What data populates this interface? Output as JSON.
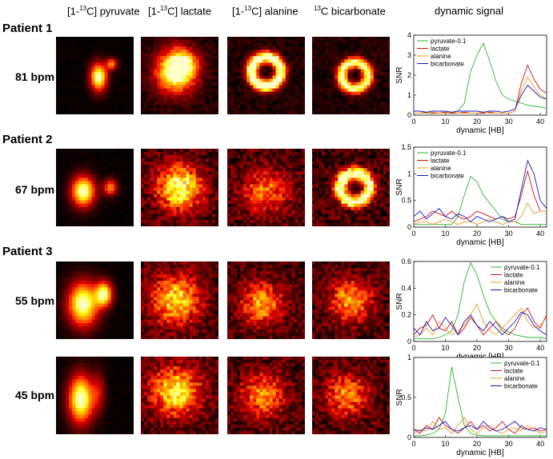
{
  "columns": [
    {
      "prefix": "[1-",
      "sup": "13",
      "suffix": "C] pyruvate"
    },
    {
      "prefix": "[1-",
      "sup": "13",
      "suffix": "C] lactate"
    },
    {
      "prefix": "[1-",
      "sup": "13",
      "suffix": "C] alanine"
    },
    {
      "prefix": "",
      "sup": "13",
      "suffix": "C bicarbonate"
    },
    {
      "prefix": "",
      "sup": "",
      "suffix": "dynamic signal"
    }
  ],
  "rows": [
    {
      "patient": "Patient 1",
      "rate": "81 bpm"
    },
    {
      "patient": "Patient 2",
      "rate": "67 bpm"
    },
    {
      "patient": "Patient 3",
      "rate": "55 bpm"
    },
    {
      "patient": "",
      "rate": "45 bpm"
    }
  ],
  "colors": {
    "pyruvate": "#2bb52b",
    "lactate": "#d01010",
    "alanine": "#f09a20",
    "bicarbonate": "#1414c8"
  },
  "chart_data": [
    {
      "type": "line",
      "xlabel": "dynamic [HB]",
      "ylabel": "SNR",
      "xlim": [
        0,
        42
      ],
      "ylim": [
        0,
        4
      ],
      "xticks": [
        0,
        10,
        20,
        30,
        40
      ],
      "yticks": [
        0,
        1,
        2,
        3,
        4
      ],
      "legend": "top-left",
      "x": [
        0,
        2,
        4,
        6,
        8,
        10,
        12,
        14,
        16,
        18,
        20,
        22,
        24,
        26,
        28,
        30,
        32,
        34,
        36,
        38,
        40,
        42
      ],
      "series": [
        {
          "name": "pyruvate-0.1",
          "key": "pyruvate",
          "values": [
            0.1,
            0.1,
            0.1,
            0.1,
            0.1,
            0.1,
            0.1,
            0.2,
            0.6,
            2.2,
            3.0,
            3.6,
            2.7,
            1.7,
            1.0,
            0.8,
            0.7,
            0.6,
            0.5,
            0.45,
            0.4,
            0.35
          ]
        },
        {
          "name": "lactate",
          "key": "lactate",
          "values": [
            0.1,
            0.1,
            0.15,
            0.1,
            0.1,
            0.15,
            0.1,
            0.1,
            0.15,
            0.1,
            0.1,
            0.1,
            0.15,
            0.1,
            0.1,
            0.1,
            0.2,
            1.6,
            2.5,
            1.8,
            1.3,
            1.1
          ]
        },
        {
          "name": "alanine",
          "key": "alanine",
          "values": [
            0.1,
            0.1,
            0.1,
            0.15,
            0.1,
            0.1,
            0.15,
            0.1,
            0.1,
            0.1,
            0.1,
            0.15,
            0.1,
            0.1,
            0.1,
            0.1,
            0.2,
            1.2,
            1.9,
            1.4,
            1.0,
            0.8
          ]
        },
        {
          "name": "bicarbonate",
          "key": "bicarbonate",
          "values": [
            0.2,
            0.2,
            0.15,
            0.2,
            0.2,
            0.2,
            0.15,
            0.2,
            0.2,
            0.2,
            0.2,
            0.15,
            0.2,
            0.2,
            0.15,
            0.2,
            0.3,
            1.0,
            1.5,
            1.2,
            0.9,
            0.8
          ]
        }
      ]
    },
    {
      "type": "line",
      "xlabel": "dynamic [HB]",
      "ylabel": "SNR",
      "xlim": [
        0,
        42
      ],
      "ylim": [
        0,
        1.5
      ],
      "xticks": [
        0,
        10,
        20,
        30,
        40
      ],
      "yticks": [
        0,
        0.5,
        1,
        1.5
      ],
      "legend": "top-left",
      "x": [
        0,
        2,
        4,
        6,
        8,
        10,
        12,
        14,
        16,
        18,
        20,
        22,
        24,
        26,
        28,
        30,
        32,
        34,
        36,
        38,
        40,
        42
      ],
      "series": [
        {
          "name": "pyruvate-0.1",
          "key": "pyruvate",
          "values": [
            0.05,
            0.05,
            0.05,
            0.05,
            0.05,
            0.05,
            0.05,
            0.2,
            0.6,
            0.95,
            0.85,
            0.6,
            0.45,
            0.3,
            0.15,
            0.1,
            0.1,
            0.05,
            0.05,
            0.05,
            0.05,
            0.05
          ]
        },
        {
          "name": "lactate",
          "key": "lactate",
          "values": [
            0.1,
            0.15,
            0.2,
            0.3,
            0.25,
            0.2,
            0.3,
            0.2,
            0.15,
            0.2,
            0.3,
            0.25,
            0.2,
            0.15,
            0.2,
            0.15,
            0.2,
            0.6,
            1.05,
            0.6,
            0.3,
            0.3
          ]
        },
        {
          "name": "alanine",
          "key": "alanine",
          "values": [
            0.05,
            0.1,
            0.1,
            0.05,
            0.1,
            0.15,
            0.1,
            0.05,
            0.1,
            0.1,
            0.05,
            0.1,
            0.15,
            0.1,
            0.05,
            0.1,
            0.1,
            0.2,
            0.45,
            0.25,
            0.3,
            0.3
          ]
        },
        {
          "name": "bicarbonate",
          "key": "bicarbonate",
          "values": [
            0.2,
            0.3,
            0.15,
            0.25,
            0.35,
            0.2,
            0.15,
            0.25,
            0.2,
            0.1,
            0.2,
            0.15,
            0.1,
            0.15,
            0.2,
            0.1,
            0.15,
            0.7,
            1.25,
            1.0,
            0.5,
            0.35
          ]
        }
      ]
    },
    {
      "type": "line",
      "xlabel": "dynamic [HB]",
      "ylabel": "SNR",
      "xlim": [
        0,
        42
      ],
      "ylim": [
        0,
        0.6
      ],
      "xticks": [
        0,
        10,
        20,
        30,
        40
      ],
      "yticks": [
        0,
        0.2,
        0.4,
        0.6
      ],
      "legend": "top-right",
      "x": [
        0,
        2,
        4,
        6,
        8,
        10,
        12,
        14,
        16,
        18,
        20,
        22,
        24,
        26,
        28,
        30,
        32,
        34,
        36,
        38,
        40,
        42
      ],
      "series": [
        {
          "name": "pyruvate-0.1",
          "key": "pyruvate",
          "values": [
            0.02,
            0.02,
            0.02,
            0.02,
            0.03,
            0.05,
            0.08,
            0.2,
            0.45,
            0.59,
            0.5,
            0.35,
            0.22,
            0.15,
            0.1,
            0.07,
            0.05,
            0.04,
            0.03,
            0.03,
            0.03,
            0.02
          ]
        },
        {
          "name": "lactate",
          "key": "lactate",
          "values": [
            0.05,
            0.1,
            0.12,
            0.2,
            0.1,
            0.08,
            0.15,
            0.05,
            0.1,
            0.18,
            0.12,
            0.05,
            0.1,
            0.15,
            0.08,
            0.05,
            0.1,
            0.2,
            0.25,
            0.15,
            0.1,
            0.2
          ]
        },
        {
          "name": "alanine",
          "key": "alanine",
          "values": [
            0.03,
            0.05,
            0.1,
            0.05,
            0.15,
            0.1,
            0.05,
            0.08,
            0.12,
            0.2,
            0.28,
            0.15,
            0.08,
            0.05,
            0.1,
            0.15,
            0.2,
            0.25,
            0.15,
            0.1,
            0.12,
            0.18
          ]
        },
        {
          "name": "bicarbonate",
          "key": "bicarbonate",
          "values": [
            0.1,
            0.05,
            0.15,
            0.08,
            0.1,
            0.18,
            0.12,
            0.05,
            0.15,
            0.2,
            0.12,
            0.08,
            0.15,
            0.1,
            0.05,
            0.1,
            0.15,
            0.22,
            0.2,
            0.12,
            0.08,
            0.05
          ]
        }
      ]
    },
    {
      "type": "line",
      "xlabel": "dynamic [HB]",
      "ylabel": "SNR",
      "xlim": [
        0,
        42
      ],
      "ylim": [
        0,
        1
      ],
      "xticks": [
        0,
        10,
        20,
        30,
        40
      ],
      "yticks": [
        0,
        0.5,
        1
      ],
      "legend": "top-right",
      "x": [
        0,
        2,
        4,
        6,
        8,
        10,
        12,
        14,
        16,
        18,
        20,
        22,
        24,
        26,
        28,
        30,
        32,
        34,
        36,
        38,
        40,
        42
      ],
      "series": [
        {
          "name": "pyruvate-0.1",
          "key": "pyruvate",
          "values": [
            0.02,
            0.02,
            0.03,
            0.05,
            0.1,
            0.3,
            0.88,
            0.5,
            0.15,
            0.05,
            0.03,
            0.02,
            0.02,
            0.02,
            0.02,
            0.02,
            0.02,
            0.02,
            0.02,
            0.02,
            0.02,
            0.02
          ]
        },
        {
          "name": "lactate",
          "key": "lactate",
          "values": [
            0.1,
            0.05,
            0.15,
            0.1,
            0.25,
            0.15,
            0.1,
            0.05,
            0.12,
            0.2,
            0.1,
            0.15,
            0.08,
            0.12,
            0.2,
            0.1,
            0.05,
            0.15,
            0.1,
            0.12,
            0.08,
            0.1
          ]
        },
        {
          "name": "alanine",
          "key": "alanine",
          "values": [
            0.05,
            0.1,
            0.08,
            0.2,
            0.1,
            0.12,
            0.05,
            0.15,
            0.25,
            0.1,
            0.05,
            0.12,
            0.15,
            0.08,
            0.05,
            0.1,
            0.12,
            0.08,
            0.15,
            0.1,
            0.05,
            0.08
          ]
        },
        {
          "name": "bicarbonate",
          "key": "bicarbonate",
          "values": [
            0.1,
            0.08,
            0.12,
            0.1,
            0.15,
            0.2,
            0.1,
            0.08,
            0.12,
            0.15,
            0.1,
            0.2,
            0.12,
            0.08,
            0.1,
            0.15,
            0.2,
            0.12,
            0.1,
            0.08,
            0.12,
            0.1
          ]
        }
      ]
    }
  ]
}
